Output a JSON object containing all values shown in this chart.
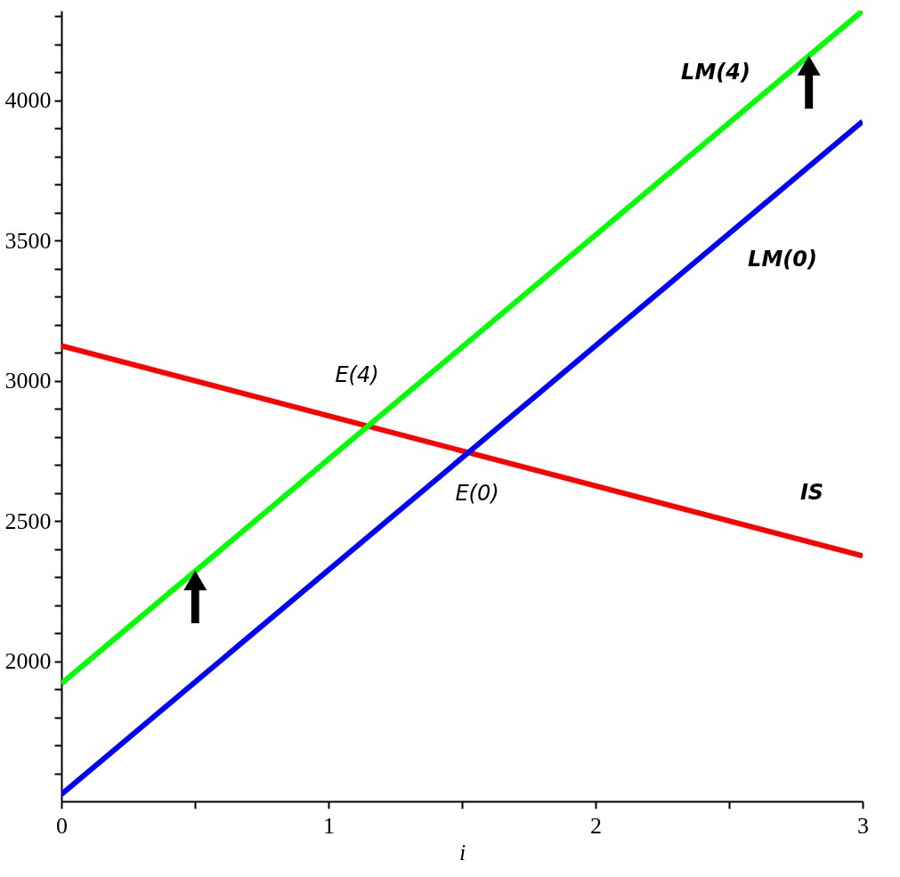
{
  "chart_data": {
    "type": "line",
    "xlabel": "i",
    "x": [
      0,
      3
    ],
    "series": [
      {
        "name": "IS",
        "color": "#ff0000",
        "values": [
          3125,
          2375
        ]
      },
      {
        "name": "LM(0)",
        "color": "#0000ff",
        "values": [
          1525,
          3925
        ]
      },
      {
        "name": "LM(4)",
        "color": "#00ff00",
        "values": [
          1920,
          4320
        ]
      }
    ],
    "xlim": [
      0,
      3
    ],
    "ylim": [
      1500,
      4320
    ],
    "xticks": [
      0,
      {
        "value": 0.5,
        "label": null
      },
      1,
      {
        "value": 1.5,
        "label": null
      },
      2,
      {
        "value": 2.5,
        "label": null
      },
      3
    ],
    "yticks": [
      {
        "value": 1600,
        "label": null
      },
      {
        "value": 1700,
        "label": null
      },
      {
        "value": 1800,
        "label": null
      },
      {
        "value": 1900,
        "label": null
      },
      2000,
      {
        "value": 2100,
        "label": null
      },
      {
        "value": 2200,
        "label": null
      },
      {
        "value": 2300,
        "label": null
      },
      {
        "value": 2400,
        "label": null
      },
      2500,
      {
        "value": 2600,
        "label": null
      },
      {
        "value": 2700,
        "label": null
      },
      {
        "value": 2800,
        "label": null
      },
      {
        "value": 2900,
        "label": null
      },
      3000,
      {
        "value": 3100,
        "label": null
      },
      {
        "value": 3200,
        "label": null
      },
      {
        "value": 3300,
        "label": null
      },
      {
        "value": 3400,
        "label": null
      },
      3500,
      {
        "value": 3600,
        "label": null
      },
      {
        "value": 3700,
        "label": null
      },
      {
        "value": 3800,
        "label": null
      },
      {
        "value": 3900,
        "label": null
      },
      4000,
      {
        "value": 4100,
        "label": null
      },
      {
        "value": 4200,
        "label": null
      },
      {
        "value": 4300,
        "label": null
      }
    ],
    "grid": false,
    "marker": "none",
    "line_style": "solid",
    "annotations": [
      "E(4)",
      "E(0)"
    ]
  }
}
